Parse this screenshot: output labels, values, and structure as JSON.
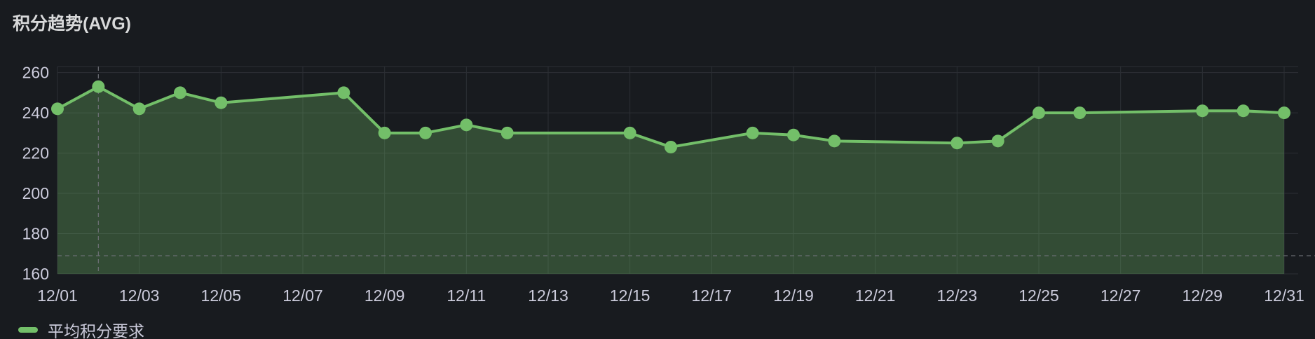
{
  "panel": {
    "title": "积分趋势(AVG)"
  },
  "colors": {
    "background": "#181b1f",
    "series": "#73bf69",
    "grid": "#2c2f35",
    "text": "#ccccdc"
  },
  "chart_data": {
    "type": "line",
    "title": "积分趋势(AVG)",
    "xlabel": "",
    "ylabel": "",
    "x_tick_labels": [
      "12/01",
      "12/03",
      "12/05",
      "12/07",
      "12/09",
      "12/11",
      "12/13",
      "12/15",
      "12/17",
      "12/19",
      "12/21",
      "12/23",
      "12/25",
      "12/27",
      "12/29",
      "12/31"
    ],
    "y_ticks": [
      160,
      180,
      200,
      220,
      240,
      260
    ],
    "ylim": [
      160,
      263
    ],
    "xlim": [
      1,
      31
    ],
    "grid": true,
    "legend_position": "bottom-left",
    "series": [
      {
        "name": "平均积分要求",
        "x": [
          1,
          2,
          3,
          4,
          5,
          8,
          9,
          10,
          11,
          12,
          15,
          16,
          18,
          19,
          20,
          23,
          24,
          25,
          26,
          29,
          30,
          31
        ],
        "values": [
          242,
          253,
          242,
          250,
          245,
          250,
          230,
          230,
          234,
          230,
          230,
          223,
          230,
          229,
          226,
          225,
          226,
          240,
          240,
          241,
          241,
          240
        ]
      }
    ],
    "hover_marker_x": 2,
    "threshold_y": 169
  }
}
